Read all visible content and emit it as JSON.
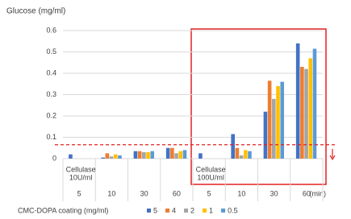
{
  "chart_data": {
    "type": "bar",
    "y_label": "Glucose (mg/ml)",
    "categories": [
      "5",
      "10",
      "30",
      "60",
      "5",
      "10",
      "30",
      "60"
    ],
    "groups": [
      {
        "lines": [
          "Cellulase",
          "10U/ml"
        ],
        "start": 0
      },
      {
        "lines": [
          "Cellulase",
          "100U/ml"
        ],
        "start": 4
      }
    ],
    "x_unit": "(min)",
    "legend_title": "CMC-DOPA coating (mg/ml)",
    "series": [
      {
        "name": "5",
        "color": "#4472c4",
        "values": [
          0.02,
          0.005,
          0.035,
          0.05,
          0.025,
          0.115,
          0.22,
          0.54
        ]
      },
      {
        "name": "4",
        "color": "#ed7d31",
        "values": [
          0,
          0.025,
          0.035,
          0.05,
          0,
          0.05,
          0.365,
          0.43
        ]
      },
      {
        "name": "2",
        "color": "#a5a5a5",
        "values": [
          0,
          0.01,
          0.03,
          0.025,
          0,
          0.015,
          0.28,
          0.42
        ]
      },
      {
        "name": "1",
        "color": "#ffc000",
        "values": [
          0,
          0.02,
          0.03,
          0.035,
          0,
          0.04,
          0.34,
          0.47
        ]
      },
      {
        "name": "0.5",
        "color": "#5b9bd5",
        "values": [
          0,
          0.015,
          0.035,
          0.04,
          0,
          0.035,
          0.36,
          0.515
        ]
      }
    ],
    "threshold": 0.065,
    "ylim": [
      0,
      0.6
    ],
    "yticks": [
      0,
      0.1,
      0.2,
      0.3,
      0.4,
      0.5,
      0.6
    ],
    "grid": true
  }
}
